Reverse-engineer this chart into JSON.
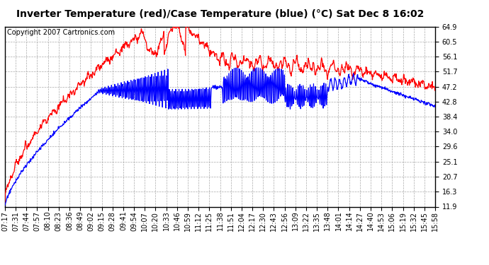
{
  "title": "Inverter Temperature (red)/Case Temperature (blue) (°C) Sat Dec 8 16:02",
  "copyright": "Copyright 2007 Cartronics.com",
  "yticks": [
    11.9,
    16.3,
    20.7,
    25.1,
    29.6,
    34.0,
    38.4,
    42.8,
    47.2,
    51.7,
    56.1,
    60.5,
    64.9
  ],
  "xtick_labels": [
    "07:17",
    "07:31",
    "07:44",
    "07:57",
    "08:10",
    "08:23",
    "08:36",
    "08:49",
    "09:02",
    "09:15",
    "09:28",
    "09:41",
    "09:54",
    "10:07",
    "10:20",
    "10:33",
    "10:46",
    "10:59",
    "11:12",
    "11:25",
    "11:38",
    "11:51",
    "12:04",
    "12:17",
    "12:30",
    "12:43",
    "12:56",
    "13:09",
    "13:22",
    "13:35",
    "13:48",
    "14:01",
    "14:14",
    "14:27",
    "14:40",
    "14:53",
    "15:06",
    "15:19",
    "15:32",
    "15:45",
    "15:58"
  ],
  "ymin": 11.9,
  "ymax": 64.9,
  "bg_color": "#ffffff",
  "plot_bg_color": "#ffffff",
  "grid_color": "#aaaaaa",
  "red_color": "#ff0000",
  "blue_color": "#0000ff",
  "title_fontsize": 10,
  "tick_fontsize": 7,
  "copyright_fontsize": 7
}
